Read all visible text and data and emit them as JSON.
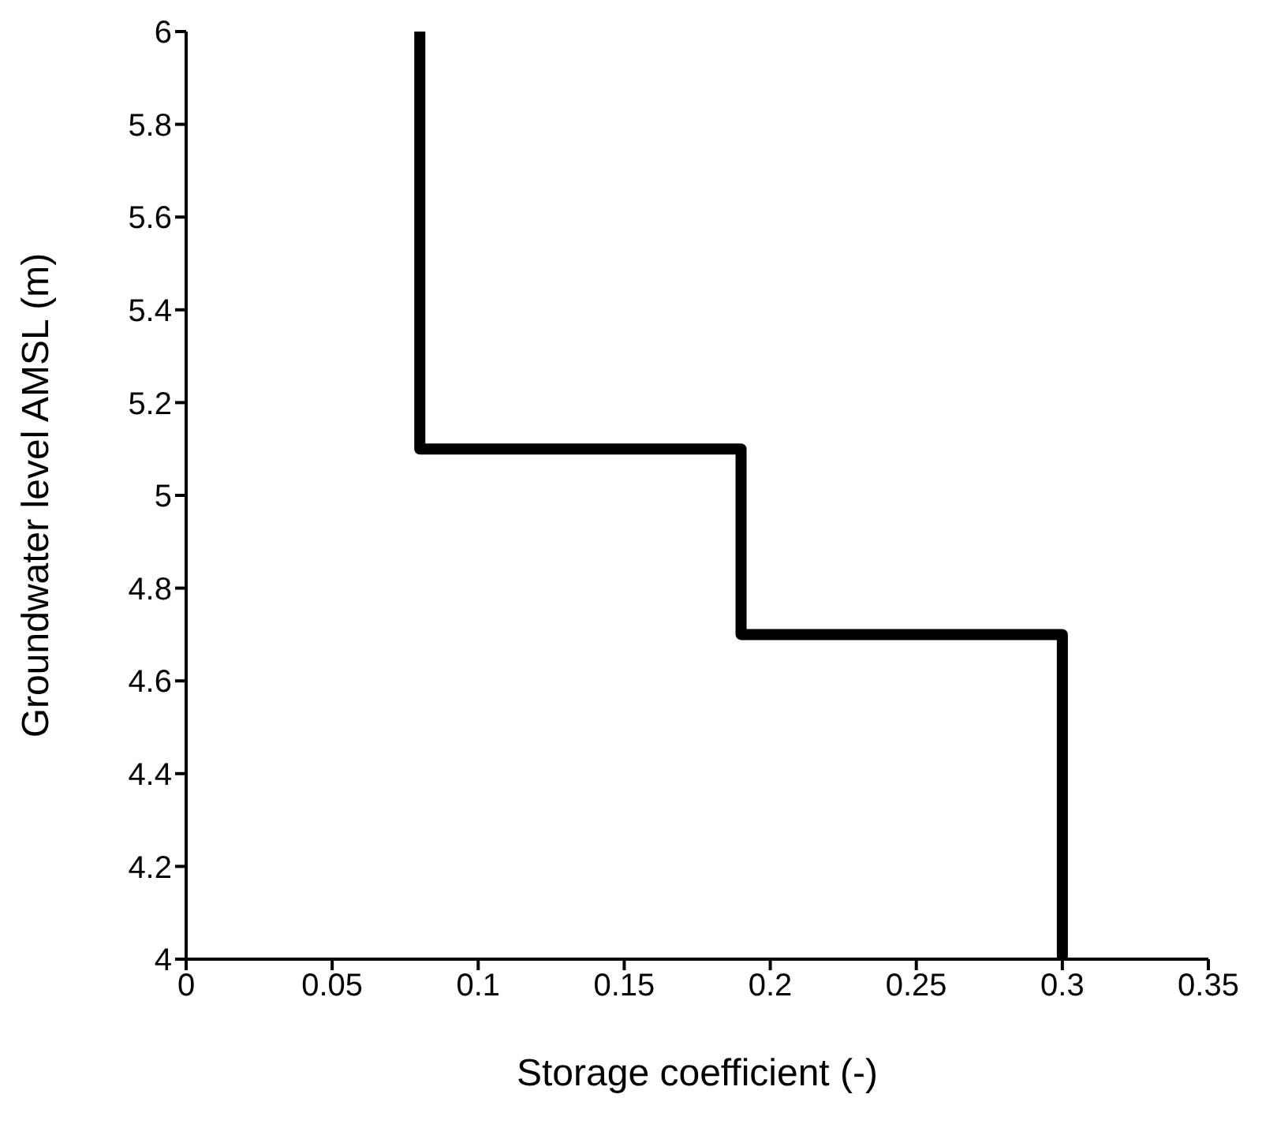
{
  "chart_data": {
    "type": "line",
    "xlabel": "Storage coefficient (-)",
    "ylabel": "Groundwater level AMSL (m)",
    "series": [
      {
        "color": "#000000",
        "x": [
          0.08,
          0.08,
          0.19,
          0.19,
          0.3,
          0.3
        ],
        "values": [
          6,
          5.1,
          5.1,
          4.7,
          4.7,
          4
        ]
      }
    ],
    "xlim": [
      0,
      0.35
    ],
    "xticks": [
      0,
      0.05,
      0.1,
      0.15,
      0.2,
      0.25,
      0.3,
      0.35
    ],
    "ylim": [
      4,
      6
    ],
    "yticks": [
      4,
      4.2,
      4.4,
      4.6,
      4.8,
      5,
      5.2,
      5.4,
      5.6,
      5.8,
      6
    ],
    "grid": false,
    "marker": "none",
    "line_style": "solid"
  }
}
